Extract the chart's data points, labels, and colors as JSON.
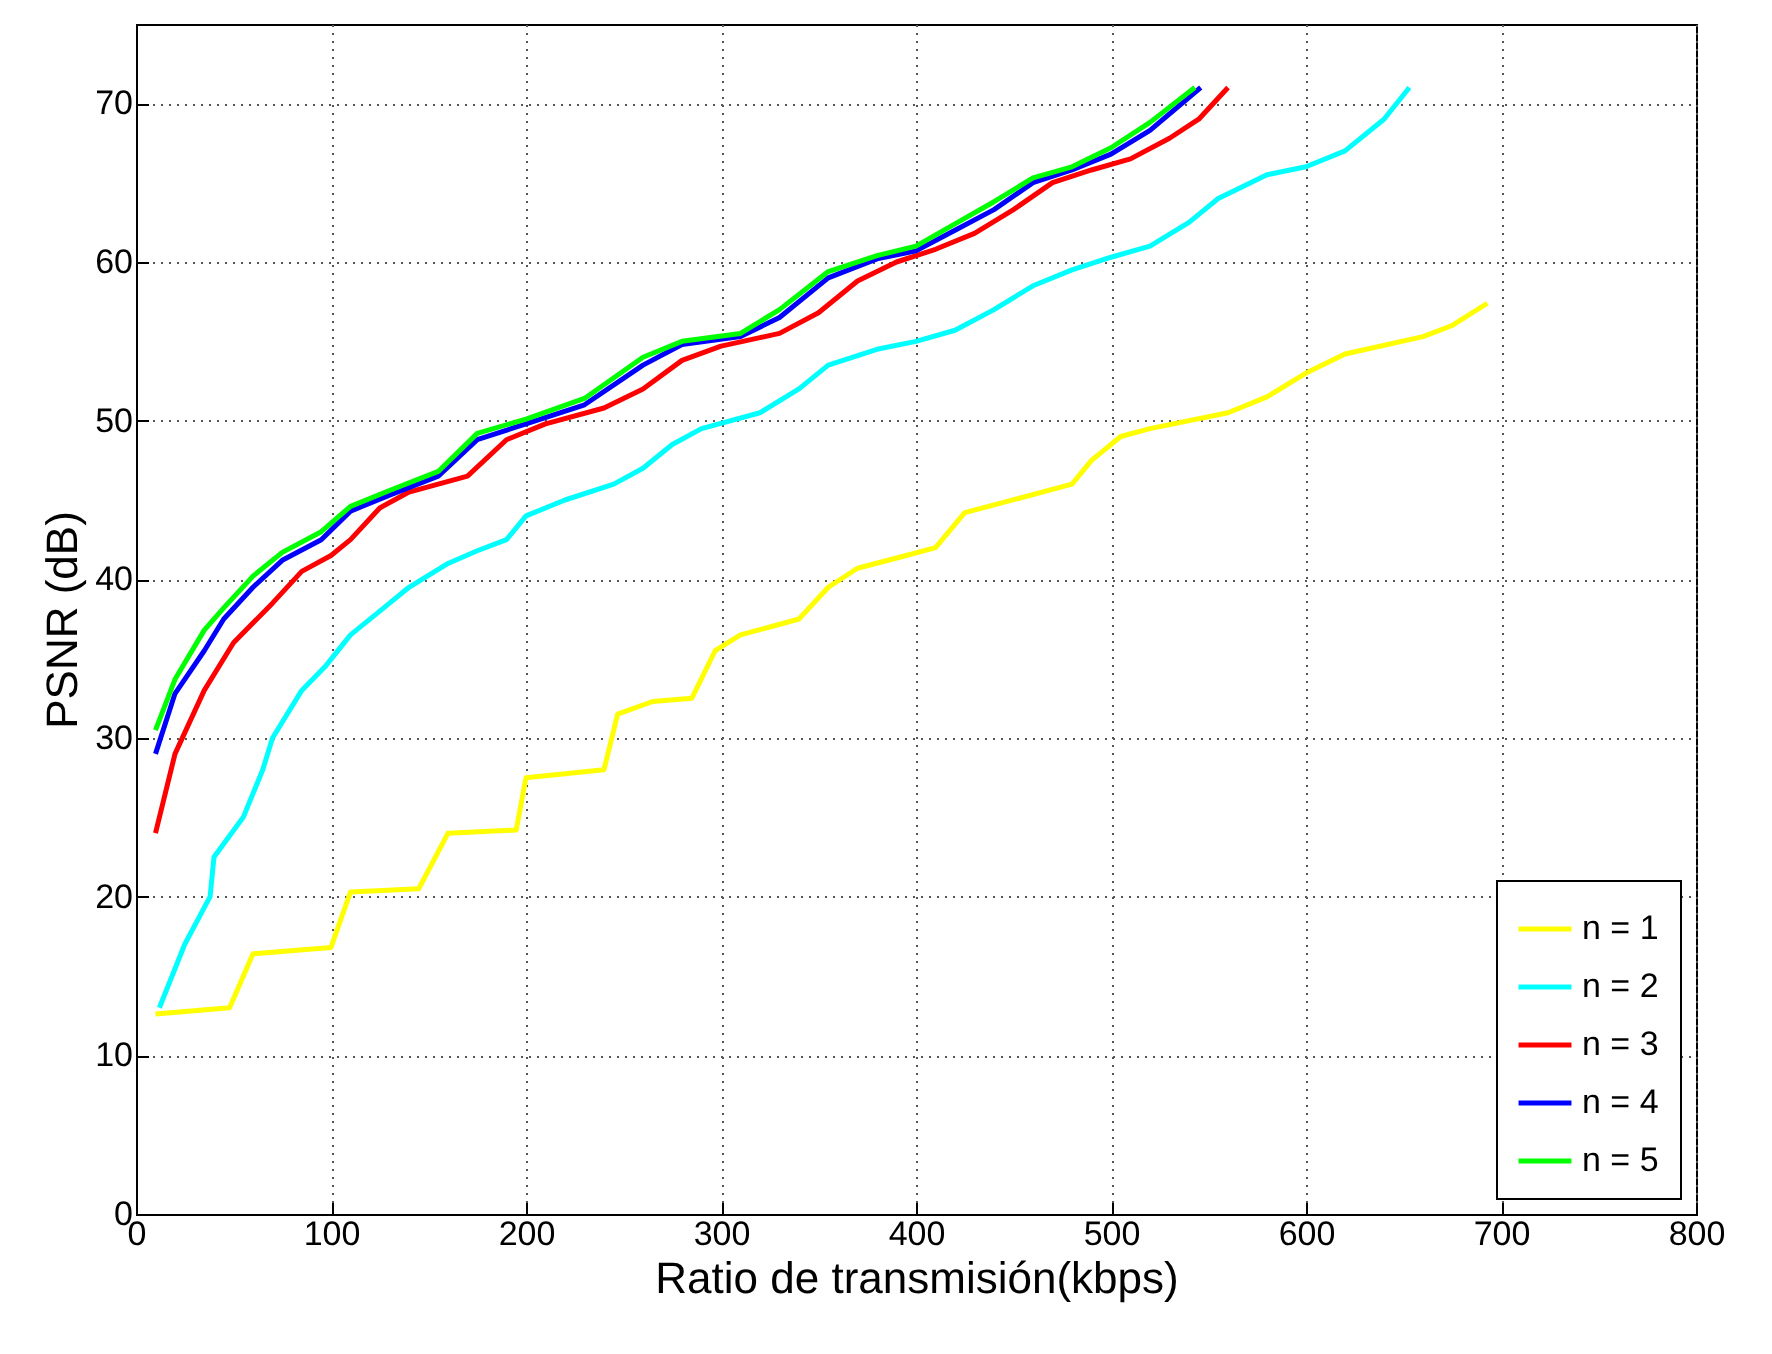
{
  "chart_data": {
    "type": "line",
    "xlabel": "Ratio de transmisión(kbps)",
    "ylabel": "PSNR (dB)",
    "xlim": [
      0,
      800
    ],
    "xticks": [
      0,
      100,
      200,
      300,
      400,
      500,
      600,
      700,
      800
    ],
    "ylim": [
      0,
      75
    ],
    "yticks": [
      0,
      10,
      20,
      30,
      40,
      50,
      60,
      70
    ],
    "grid": true,
    "legend": "bottom right",
    "line_style": "solid",
    "series": [
      {
        "name": "n = 1",
        "color": "#ffff00",
        "x": [
          10,
          48,
          60,
          100,
          110,
          145,
          160,
          195,
          200,
          240,
          247,
          265,
          285,
          297,
          310,
          340,
          355,
          370,
          395,
          410,
          425,
          480,
          490,
          505,
          520,
          560,
          580,
          600,
          620,
          660,
          675,
          693
        ],
        "values": [
          12.6,
          13,
          16.4,
          16.8,
          20.3,
          20.5,
          24,
          24.2,
          27.5,
          28,
          31.5,
          32.3,
          32.5,
          35.5,
          36.5,
          37.5,
          39.5,
          40.7,
          41.5,
          42,
          44.2,
          46,
          47.5,
          49,
          49.5,
          50.5,
          51.5,
          53,
          54.2,
          55.3,
          56,
          57.4
        ]
      },
      {
        "name": "n = 2",
        "color": "#00ffff",
        "x": [
          12,
          25,
          38,
          40,
          55,
          65,
          70,
          85,
          97,
          110,
          125,
          140,
          160,
          175,
          190,
          200,
          220,
          245,
          260,
          275,
          290,
          320,
          340,
          355,
          380,
          400,
          420,
          440,
          460,
          480,
          500,
          520,
          540,
          555,
          580,
          600,
          620,
          640,
          653
        ],
        "values": [
          13,
          17,
          20,
          22.5,
          25,
          28,
          30,
          33,
          34.5,
          36.5,
          38,
          39.5,
          41,
          41.8,
          42.5,
          44,
          45,
          46,
          47,
          48.5,
          49.5,
          50.5,
          52,
          53.5,
          54.5,
          55,
          55.7,
          57,
          58.5,
          59.5,
          60.3,
          61,
          62.5,
          64,
          65.5,
          66,
          67,
          69,
          71
        ]
      },
      {
        "name": "n = 3",
        "color": "#ff0000",
        "x": [
          10,
          20,
          35,
          50,
          70,
          85,
          100,
          110,
          125,
          140,
          170,
          190,
          210,
          240,
          260,
          280,
          300,
          330,
          350,
          370,
          390,
          410,
          430,
          450,
          470,
          490,
          510,
          530,
          545,
          560
        ],
        "values": [
          24,
          29,
          33,
          36,
          38.5,
          40.5,
          41.5,
          42.5,
          44.5,
          45.5,
          46.5,
          48.8,
          49.8,
          50.8,
          52,
          53.8,
          54.7,
          55.5,
          56.8,
          58.8,
          60,
          60.8,
          61.8,
          63.3,
          65,
          65.8,
          66.5,
          67.8,
          69,
          71
        ]
      },
      {
        "name": "n = 4",
        "color": "#0000ff",
        "x": [
          10,
          20,
          35,
          45,
          60,
          75,
          95,
          110,
          130,
          155,
          175,
          200,
          230,
          260,
          280,
          310,
          330,
          355,
          380,
          400,
          420,
          440,
          460,
          480,
          500,
          520,
          546
        ],
        "values": [
          29,
          32.8,
          35.5,
          37.5,
          39.5,
          41.2,
          42.5,
          44.3,
          45.3,
          46.5,
          48.8,
          49.8,
          51,
          53.5,
          54.8,
          55.3,
          56.5,
          59,
          60.2,
          60.7,
          62,
          63.3,
          65,
          65.8,
          66.8,
          68.3,
          71
        ]
      },
      {
        "name": "n = 5",
        "color": "#00ff00",
        "x": [
          10,
          20,
          35,
          45,
          60,
          75,
          95,
          110,
          130,
          155,
          175,
          200,
          230,
          260,
          280,
          310,
          330,
          355,
          380,
          400,
          420,
          440,
          460,
          480,
          500,
          520,
          543
        ],
        "values": [
          30.5,
          33.7,
          36.8,
          38.2,
          40.2,
          41.7,
          43,
          44.6,
          45.6,
          46.8,
          49.2,
          50.1,
          51.4,
          54,
          55,
          55.5,
          57,
          59.4,
          60.4,
          61,
          62.4,
          63.8,
          65.3,
          66,
          67.2,
          68.8,
          71
        ]
      }
    ]
  }
}
